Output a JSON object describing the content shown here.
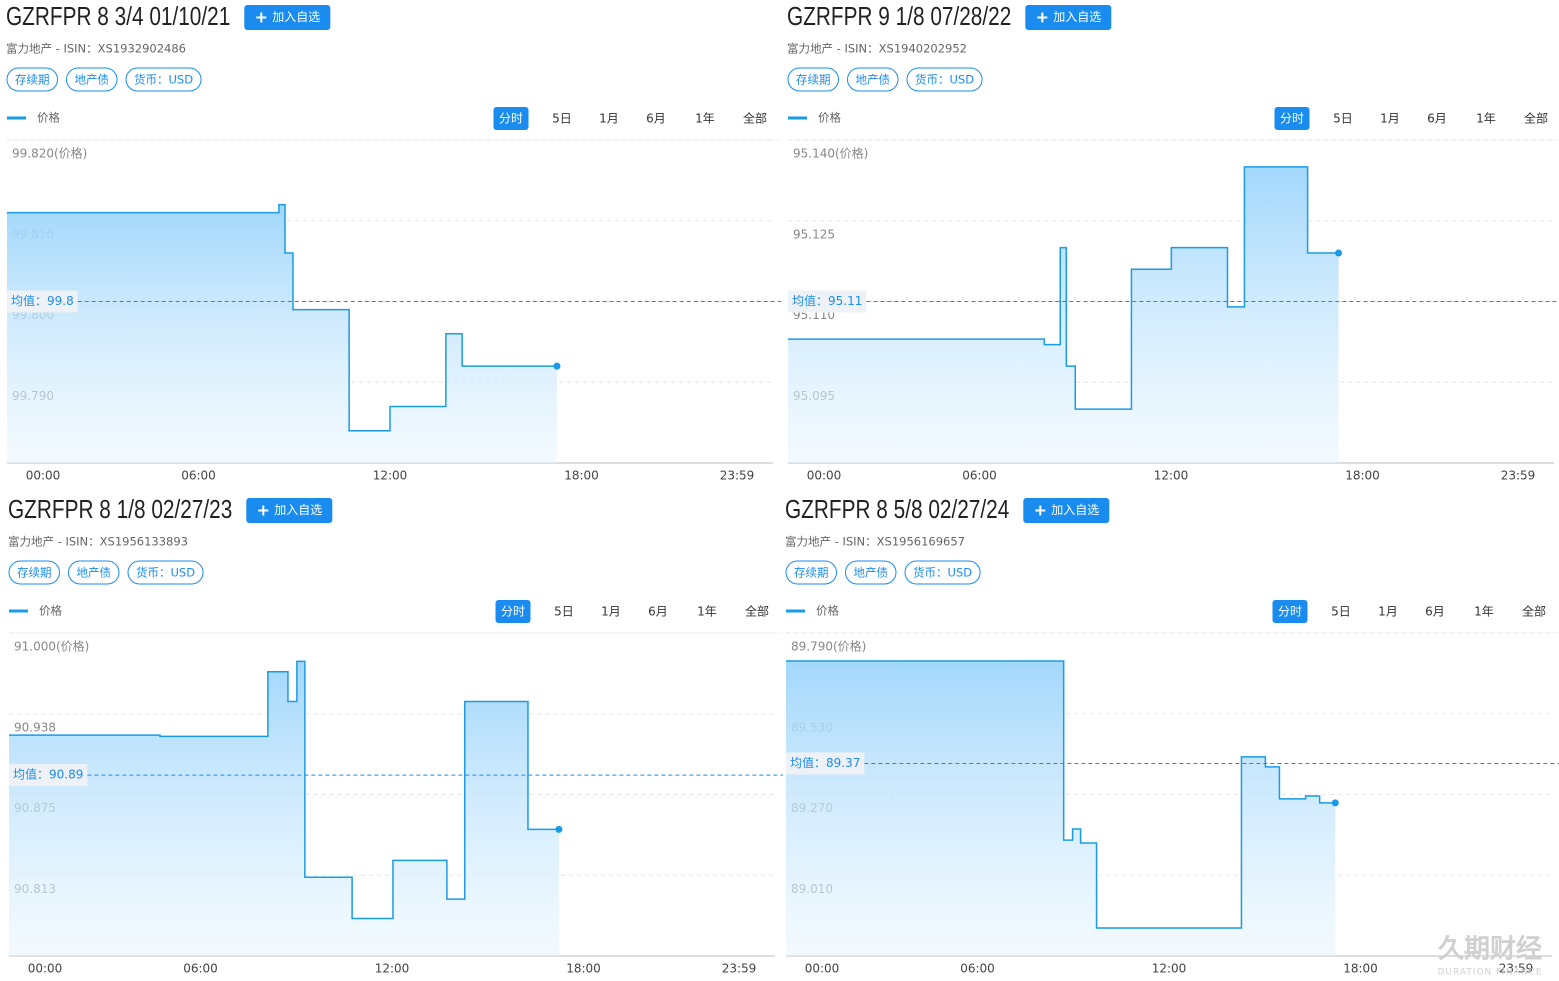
{
  "chart_data": [
    {
      "type": "line",
      "title": "GZRFPR 8 3/4 01/10/21",
      "button": "加入自选",
      "subtitle": "富力地产 - ISIN：XS1932902486",
      "tags": [
        "存续期",
        "地产债",
        "货币：USD"
      ],
      "tabs": [
        "分时",
        "5日",
        "1月",
        "6月",
        "1年",
        "全部"
      ],
      "series": [
        {
          "name": "价格",
          "color": "#1a9be8",
          "x": [
            0,
            8.52,
            8.52,
            8.71,
            8.71,
            8.96,
            8.96,
            10.72,
            10.72,
            12.0,
            12.0,
            13.75,
            13.75,
            14.26,
            14.26,
            17.23
          ],
          "values": [
            99.811,
            99.811,
            99.812,
            99.812,
            99.806,
            99.806,
            99.799,
            99.799,
            99.784,
            99.784,
            99.787,
            99.787,
            99.796,
            99.796,
            99.792,
            99.792
          ]
        }
      ],
      "mean": 99.8,
      "mean_label": "均值：99.8",
      "xlim": [
        0,
        24
      ],
      "xticks": [
        {
          "value": 0,
          "label": "00:00"
        },
        {
          "value": 6,
          "label": "06:00"
        },
        {
          "value": 12,
          "label": "12:00"
        },
        {
          "value": 18,
          "label": "18:00"
        },
        {
          "value": 23.983,
          "label": "23:59"
        }
      ],
      "ylim": [
        99.78,
        99.82
      ],
      "yticks": [
        {
          "value": 99.82,
          "label": "99.820(价格)"
        },
        {
          "value": 99.81,
          "label": "99.810"
        },
        {
          "value": 99.8,
          "label": "99.800"
        },
        {
          "value": 99.79,
          "label": "99.790"
        }
      ],
      "grid": true
    },
    {
      "type": "line",
      "title": "GZRFPR 9 1/8 07/28/22",
      "button": "加入自选",
      "subtitle": "富力地产 - ISIN：XS1940202952",
      "tags": [
        "存续期",
        "地产债",
        "货币：USD"
      ],
      "tabs": [
        "分时",
        "5日",
        "1月",
        "6月",
        "1年",
        "全部"
      ],
      "series": [
        {
          "name": "价格",
          "color": "#1a9be8",
          "x": [
            0,
            8.03,
            8.03,
            8.53,
            8.53,
            8.72,
            8.72,
            9.0,
            9.0,
            10.76,
            10.76,
            12.01,
            12.01,
            13.77,
            13.77,
            14.3,
            14.3,
            16.28,
            16.28,
            17.25
          ],
          "values": [
            95.103,
            95.103,
            95.102,
            95.102,
            95.12,
            95.12,
            95.098,
            95.098,
            95.09,
            95.09,
            95.116,
            95.116,
            95.12,
            95.12,
            95.109,
            95.109,
            95.135,
            95.135,
            95.119,
            95.119
          ]
        }
      ],
      "mean": 95.11,
      "mean_label": "均值：95.11",
      "xlim": [
        0,
        24
      ],
      "xticks": [
        {
          "value": 0,
          "label": "00:00"
        },
        {
          "value": 6,
          "label": "06:00"
        },
        {
          "value": 12,
          "label": "12:00"
        },
        {
          "value": 18,
          "label": "18:00"
        },
        {
          "value": 23.983,
          "label": "23:59"
        }
      ],
      "ylim": [
        95.08,
        95.14
      ],
      "yticks": [
        {
          "value": 95.14,
          "label": "95.140(价格)"
        },
        95.125,
        {
          "value": 95.11,
          "label": "95.110"
        },
        95.095
      ],
      "grid": true
    },
    {
      "type": "line",
      "title": "GZRFPR 8 1/8 02/27/23",
      "button": "加入自选",
      "subtitle": "富力地产 - ISIN：XS1956133893",
      "tags": [
        "存续期",
        "地产债",
        "货币：USD"
      ],
      "tabs": [
        "分时",
        "5日",
        "1月",
        "6月",
        "1年",
        "全部"
      ],
      "series": [
        {
          "name": "价格",
          "color": "#1a9be8",
          "x": [
            0,
            4.73,
            4.73,
            8.11,
            8.11,
            8.74,
            8.74,
            9.02,
            9.02,
            9.27,
            9.27,
            10.75,
            10.75,
            12.03,
            12.03,
            13.72,
            13.72,
            14.28,
            14.28,
            16.26,
            16.26,
            17.23
          ],
          "values": [
            90.921,
            90.921,
            90.92,
            90.92,
            90.97,
            90.97,
            90.947,
            90.947,
            90.978,
            90.978,
            90.811,
            90.811,
            90.779,
            90.779,
            90.824,
            90.824,
            90.794,
            90.794,
            90.947,
            90.947,
            90.848,
            90.848
          ]
        }
      ],
      "mean": 90.89,
      "mean_label": "均值：90.89",
      "xlim": [
        0,
        24
      ],
      "xticks": [
        {
          "value": 0,
          "label": "00:00"
        },
        {
          "value": 6,
          "label": "06:00"
        },
        {
          "value": 12,
          "label": "12:00"
        },
        {
          "value": 18,
          "label": "18:00"
        },
        {
          "value": 23.983,
          "label": "23:59"
        }
      ],
      "ylim": [
        90.75,
        91.0
      ],
      "yticks": [
        {
          "value": 91.0,
          "label": "91.000(价格)"
        },
        {
          "value": 90.9375,
          "label": "90.938"
        },
        90.875,
        {
          "value": 90.8125,
          "label": "90.813"
        }
      ],
      "grid": true
    },
    {
      "type": "line",
      "title": "GZRFPR 8 5/8 02/27/24",
      "button": "加入自选",
      "subtitle": "富力地产 - ISIN：XS1956169657",
      "tags": [
        "存续期",
        "地产债",
        "货币：USD"
      ],
      "tabs": [
        "分时",
        "5日",
        "1月",
        "6月",
        "1年",
        "全部"
      ],
      "series": [
        {
          "name": "价格",
          "color": "#1a9be8",
          "x": [
            0,
            8.7,
            8.7,
            8.98,
            8.98,
            9.23,
            9.23,
            9.73,
            9.73,
            14.27,
            14.27,
            15.02,
            15.02,
            15.46,
            15.46,
            16.28,
            16.28,
            16.72,
            16.72,
            17.21
          ],
          "values": [
            89.7,
            89.7,
            89.123,
            89.123,
            89.159,
            89.159,
            89.114,
            89.114,
            88.84,
            88.84,
            89.391,
            89.391,
            89.359,
            89.359,
            89.256,
            89.256,
            89.265,
            89.265,
            89.243,
            89.243
          ]
        }
      ],
      "mean": 89.37,
      "mean_label": "均值：89.37",
      "xlim": [
        0,
        24
      ],
      "xticks": [
        {
          "value": 0,
          "label": "00:00"
        },
        {
          "value": 6,
          "label": "06:00"
        },
        {
          "value": 12,
          "label": "12:00"
        },
        {
          "value": 18,
          "label": "18:00"
        },
        {
          "value": 23.983,
          "label": "23:59"
        }
      ],
      "ylim": [
        88.75,
        89.79
      ],
      "yticks": [
        {
          "value": 89.79,
          "label": "89.790(价格)"
        },
        {
          "value": 89.53,
          "label": "89.530"
        },
        {
          "value": 89.27,
          "label": "89.270"
        },
        {
          "value": 89.01,
          "label": "89.010"
        }
      ],
      "grid": true
    }
  ],
  "watermark": {
    "name": "久期财经",
    "subname": "DURATION FINANCE"
  }
}
